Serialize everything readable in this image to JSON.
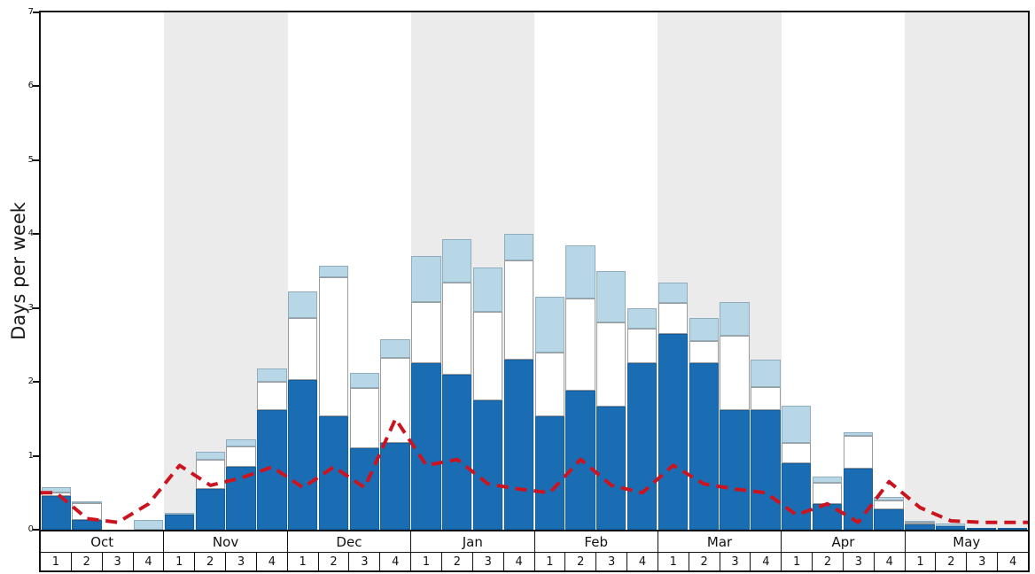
{
  "figure": {
    "ylabel": "Days per week"
  },
  "chart_data": {
    "type": "bar",
    "stacked": true,
    "title": "",
    "xlabel": "",
    "ylabel": "Days per week",
    "ylim": [
      0,
      7
    ],
    "y_ticks": [
      "0",
      "1",
      "2",
      "3",
      "4",
      "5",
      "6",
      "7"
    ],
    "legend": "none",
    "x_months": [
      "Oct",
      "Nov",
      "Dec",
      "Jan",
      "Feb",
      "Mar",
      "Apr",
      "May"
    ],
    "x_weeks": [
      "1",
      "2",
      "3",
      "4"
    ],
    "band_colors": [
      "#ffffff",
      "#ebebeb"
    ],
    "series": [
      {
        "name": "dark-blue-bars",
        "color": "#1b6db3",
        "border": "#135e9e",
        "values": [
          0.45,
          0.13,
          0,
          0,
          0.2,
          0.55,
          0.85,
          1.62,
          2.02,
          1.53,
          1.1,
          1.18,
          2.25,
          2.1,
          1.75,
          2.3,
          1.53,
          1.88,
          1.67,
          2.25,
          2.65,
          2.25,
          1.62,
          1.62,
          0.9,
          0.35,
          0.83,
          0.28,
          0.07,
          0.05,
          0.02,
          0.02
        ]
      },
      {
        "name": "white-bars",
        "color": "#ffffff",
        "border": "#9c9c9c",
        "values": [
          0.05,
          0.23,
          0,
          0,
          0,
          0.4,
          0.28,
          0.38,
          0.85,
          1.89,
          0.82,
          1.15,
          0.83,
          1.25,
          1.2,
          1.35,
          0.87,
          1.25,
          1.13,
          0.47,
          0.42,
          0.3,
          1.0,
          0.31,
          0.27,
          0.28,
          0.44,
          0.12,
          0.02,
          0,
          0,
          0
        ]
      },
      {
        "name": "light-blue-bars",
        "color": "#b7d6e6",
        "border": "#8fadbd",
        "values": [
          0.07,
          0.02,
          0,
          0.13,
          0.03,
          0.1,
          0.09,
          0.18,
          0.35,
          0.15,
          0.2,
          0.25,
          0.62,
          0.58,
          0.6,
          0.35,
          0.75,
          0.72,
          0.7,
          0.28,
          0.28,
          0.32,
          0.46,
          0.37,
          0.51,
          0.09,
          0.05,
          0.04,
          0.03,
          0.03,
          0,
          0
        ]
      }
    ],
    "line": {
      "name": "red-dashed-line",
      "color": "#cc1420",
      "style": "dashed",
      "width": 4,
      "values": [
        0.5,
        0.15,
        0.1,
        0.35,
        0.87,
        0.6,
        0.7,
        0.85,
        0.57,
        0.85,
        0.57,
        1.5,
        0.87,
        0.95,
        0.62,
        0.55,
        0.5,
        0.95,
        0.6,
        0.5,
        0.87,
        0.62,
        0.55,
        0.5,
        0.2,
        0.35,
        0.1,
        0.65,
        0.3,
        0.12,
        0.1,
        0.1
      ]
    }
  }
}
